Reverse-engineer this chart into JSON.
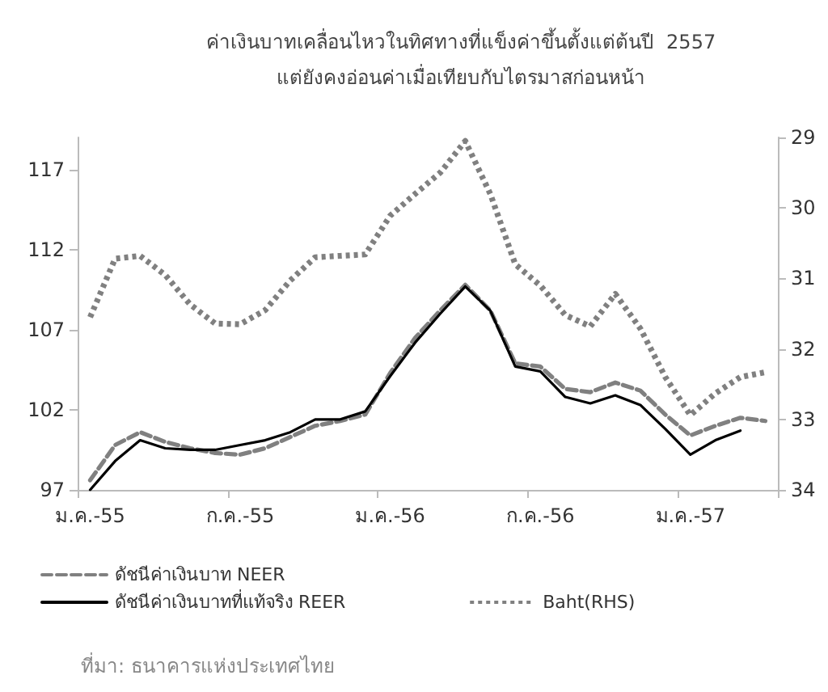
{
  "chart_data": {
    "type": "line",
    "title": "ค่าเงินบาทเคลื่อนไหวในทิศทางที่แข็งค่าขึ้นตั้งแต่ต้นปี  2557\nแต่ยังคงอ่อนค่าเมื่อเทียบกับไตรมาสก่อนหน้า",
    "categories": [
      "ม.ค.-55",
      null,
      null,
      null,
      null,
      null,
      "ก.ค.-55",
      null,
      null,
      null,
      null,
      null,
      "ม.ค.-56",
      null,
      null,
      null,
      null,
      null,
      "ก.ค.-56",
      null,
      null,
      null,
      null,
      null,
      "ม.ค.-57",
      null,
      null,
      null
    ],
    "series": [
      {
        "name": "ดัชนีค่าเงินบาท NEER",
        "color": "#808080",
        "line_style": "dashed",
        "values": [
          97.6,
          99.8,
          100.6,
          100.0,
          99.6,
          99.3,
          99.2,
          99.6,
          100.3,
          101.0,
          101.3,
          101.7,
          104.3,
          106.5,
          108.2,
          109.8,
          108.2,
          104.9,
          104.7,
          103.3,
          103.1,
          103.7,
          103.2,
          101.7,
          100.4,
          101.0,
          101.5,
          101.3
        ]
      },
      {
        "name": "ดัชนีค่าเงินบาทที่แท้จริง REER",
        "color": "#000000",
        "line_style": "solid",
        "values": [
          97.0,
          98.8,
          100.1,
          99.6,
          99.5,
          99.5,
          99.8,
          100.1,
          100.6,
          101.4,
          101.4,
          101.9,
          104.1,
          106.2,
          108.0,
          109.7,
          108.2,
          104.7,
          104.4,
          102.8,
          102.4,
          102.9,
          102.3,
          100.8,
          99.2,
          100.1,
          100.7,
          null
        ]
      },
      {
        "name": "Baht(RHS)",
        "color": "#808080",
        "line_style": "dotted",
        "axis": "y2",
        "values": [
          31.55,
          30.72,
          30.68,
          30.95,
          31.37,
          31.64,
          31.65,
          31.45,
          31.03,
          30.7,
          30.68,
          30.66,
          30.11,
          29.8,
          29.5,
          29.05,
          29.8,
          30.8,
          31.1,
          31.52,
          31.68,
          31.22,
          31.71,
          32.4,
          32.94,
          32.63,
          32.4,
          32.33
        ]
      }
    ],
    "ylim": [
      97,
      119
    ],
    "yticks": [
      97,
      102,
      107,
      112,
      117
    ],
    "y2lim": [
      34,
      29
    ],
    "y2ticks": [
      29,
      30,
      31,
      32,
      33,
      34
    ],
    "grid": false,
    "marker": "none",
    "legend": "bottom",
    "annotations": [
      "ที่มา: ธนาคารแห่งประเทศไทย"
    ]
  }
}
